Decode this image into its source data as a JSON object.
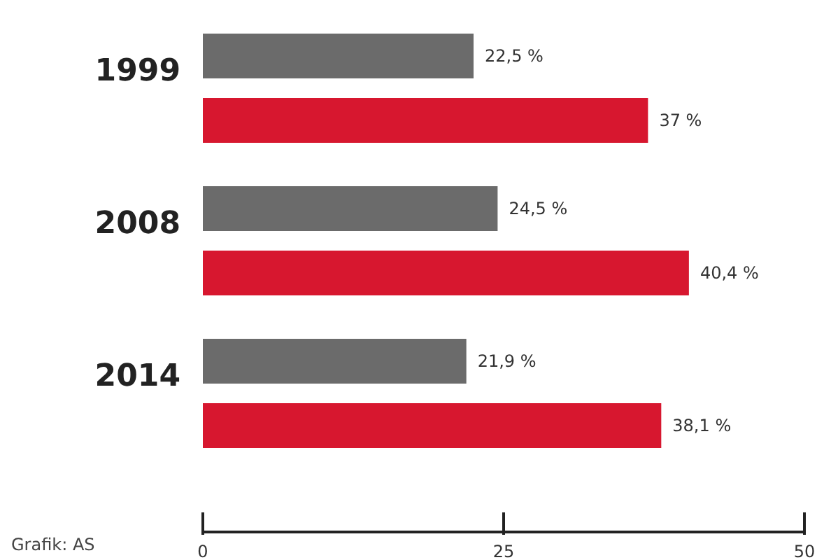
{
  "chart_data": {
    "type": "bar",
    "orientation": "horizontal",
    "categories": [
      "1999",
      "2008",
      "2014"
    ],
    "series": [
      {
        "color": "#6b6b6b",
        "values": [
          22.5,
          24.5,
          21.9
        ],
        "value_labels": [
          "22,5 %",
          "24,5 %",
          "21,9 %"
        ]
      },
      {
        "color": "#d7172f",
        "values": [
          37,
          40.4,
          38.1
        ],
        "value_labels": [
          "37 %",
          "40,4 %",
          "38,1 %"
        ]
      }
    ],
    "xlim": [
      0,
      50
    ],
    "xticks": [
      0,
      25,
      50
    ],
    "annotations": [
      "Grafik: AS"
    ]
  }
}
